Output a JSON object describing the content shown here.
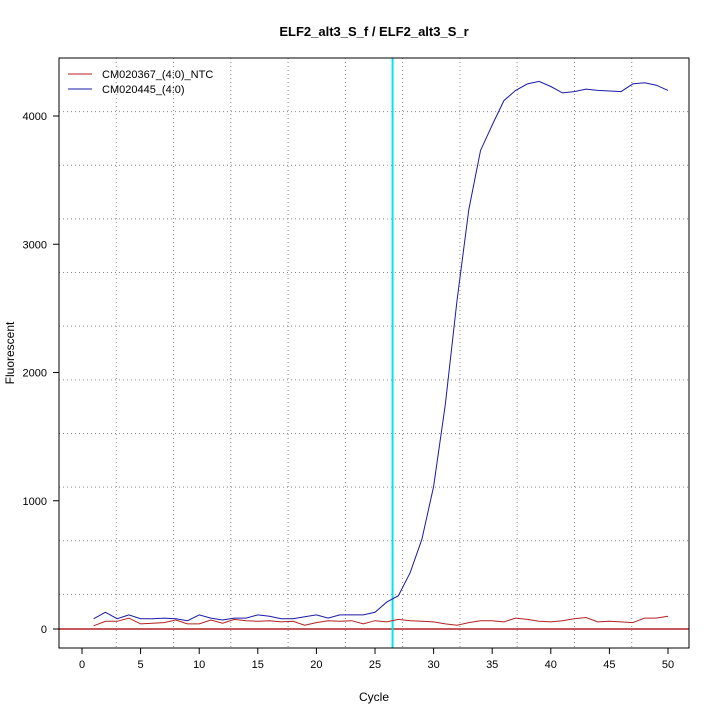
{
  "chart_data": {
    "type": "line",
    "title": "ELF2_alt3_S_f / ELF2_alt3_S_r",
    "xlabel": "Cycle",
    "ylabel": "Fluorescent",
    "xlim": [
      -2,
      52
    ],
    "ylim": [
      -150,
      4400
    ],
    "xticks": [
      0,
      5,
      10,
      15,
      20,
      25,
      30,
      35,
      40,
      45,
      50
    ],
    "yticks": [
      0,
      1000,
      2000,
      3000,
      4000
    ],
    "grid": true,
    "legend_position": "top-left",
    "threshold_cycle": 26.5,
    "baseline_value": 0,
    "colors": {
      "threshold_line": "#00e5ee",
      "baseline": "#b22222"
    },
    "x": [
      1,
      2,
      3,
      4,
      5,
      6,
      7,
      8,
      9,
      10,
      11,
      12,
      13,
      14,
      15,
      16,
      17,
      18,
      19,
      20,
      21,
      22,
      23,
      24,
      25,
      26,
      27,
      28,
      29,
      30,
      31,
      32,
      33,
      34,
      35,
      36,
      37,
      38,
      39,
      40,
      41,
      42,
      43,
      44,
      45,
      46,
      47,
      48,
      49,
      50
    ],
    "series": [
      {
        "name": "CM020367_(4:0)_NTC",
        "color": "#b22222",
        "values": [
          25,
          60,
          60,
          85,
          40,
          45,
          50,
          70,
          40,
          40,
          70,
          45,
          75,
          65,
          60,
          65,
          55,
          60,
          30,
          50,
          65,
          60,
          65,
          40,
          65,
          55,
          75,
          65,
          60,
          55,
          40,
          30,
          50,
          65,
          65,
          55,
          85,
          75,
          60,
          55,
          65,
          80,
          90,
          55,
          60,
          55,
          50,
          85,
          85,
          100
        ]
      },
      {
        "name": "CM020445_(4:0)",
        "color": "#1a1aa6",
        "values": [
          80,
          130,
          80,
          110,
          80,
          80,
          85,
          80,
          65,
          110,
          85,
          70,
          85,
          85,
          110,
          100,
          80,
          80,
          95,
          110,
          85,
          110,
          110,
          110,
          130,
          210,
          260,
          440,
          700,
          1110,
          1750,
          2560,
          3270,
          3730,
          3930,
          4120,
          4200,
          4250,
          4270,
          4230,
          4180,
          4190,
          4210,
          4200,
          4195,
          4190,
          4250,
          4260,
          4240,
          4200
        ]
      }
    ]
  }
}
